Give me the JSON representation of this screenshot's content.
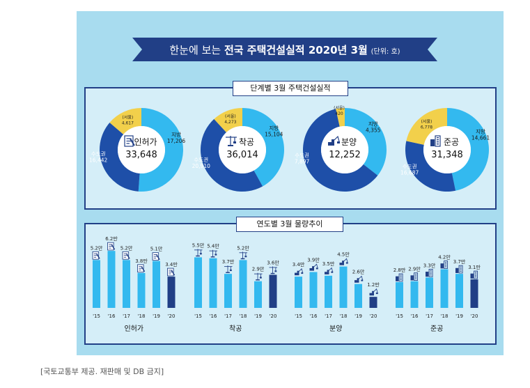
{
  "title": {
    "prefix": "한눈에 보는 ",
    "main": "전국 주택건설실적 2020년 3월",
    "unit": "(단위: 호)"
  },
  "colors": {
    "metro": "#1e4fa8",
    "local": "#33b9ef",
    "seoul": "#f2d04b",
    "navy": "#213f86",
    "bar_past": "#33b9ef",
    "bar_current": "#213f86",
    "background": "#a8dcef"
  },
  "stage_section": {
    "label": "단계별 3월 주택건설실적"
  },
  "trend_section": {
    "label": "연도별 3월 물량추이"
  },
  "caption": "[국토교통부 제공. 재판매 및 DB 금지]",
  "chart_data": [
    {
      "type": "pie",
      "title": "단계별 3월 주택건설실적",
      "charts": [
        {
          "name": "인허가",
          "total": "33,648",
          "icon": "permit-document-icon",
          "slices": [
            {
              "label": "수도권",
              "value": 16442,
              "value_text": "16,442",
              "sub": false
            },
            {
              "label": "지방",
              "value": 17206,
              "value_text": "17,206",
              "sub": false
            },
            {
              "label": "(서울)",
              "value": 4617,
              "value_text": "4,617",
              "sub": true
            }
          ]
        },
        {
          "name": "착공",
          "total": "36,014",
          "icon": "crane-icon",
          "slices": [
            {
              "label": "수도권",
              "value": 20910,
              "value_text": "20,910",
              "sub": false
            },
            {
              "label": "지방",
              "value": 15104,
              "value_text": "15,104",
              "sub": false
            },
            {
              "label": "(서울)",
              "value": 4273,
              "value_text": "4,273",
              "sub": true
            }
          ]
        },
        {
          "name": "분양",
          "total": "12,252",
          "icon": "excavator-icon",
          "slices": [
            {
              "label": "수도권",
              "value": 7897,
              "value_text": "7,897",
              "sub": false
            },
            {
              "label": "지방",
              "value": 4355,
              "value_text": "4,355",
              "sub": false
            },
            {
              "label": "(서울)",
              "value": 420,
              "value_text": "420",
              "sub": true
            }
          ]
        },
        {
          "name": "준공",
          "total": "31,348",
          "icon": "buildings-icon",
          "slices": [
            {
              "label": "수도권",
              "value": 16687,
              "value_text": "16,687",
              "sub": false
            },
            {
              "label": "지방",
              "value": 14661,
              "value_text": "14,661",
              "sub": false
            },
            {
              "label": "(서울)",
              "value": 6778,
              "value_text": "6,778",
              "sub": true
            }
          ]
        }
      ]
    },
    {
      "type": "bar",
      "title": "연도별 3월 물량추이",
      "categories": [
        "'15",
        "'16",
        "'17",
        "'18",
        "'19",
        "'20"
      ],
      "series": [
        {
          "name": "인허가",
          "values": [
            5.2,
            6.2,
            5.2,
            3.8,
            5.1,
            3.4
          ],
          "labels": [
            "5.2만",
            "6.2만",
            "5.2만",
            "3.8만",
            "5.1만",
            "3.4만"
          ]
        },
        {
          "name": "착공",
          "values": [
            5.5,
            5.4,
            3.7,
            5.2,
            2.9,
            3.6
          ],
          "labels": [
            "5.5만",
            "5.4만",
            "3.7만",
            "5.2만",
            "2.9만",
            "3.6만"
          ]
        },
        {
          "name": "분양",
          "values": [
            3.4,
            3.9,
            3.5,
            4.5,
            2.6,
            1.2
          ],
          "labels": [
            "3.4만",
            "3.9만",
            "3.5만",
            "4.5만",
            "2.6만",
            "1.2만"
          ]
        },
        {
          "name": "준공",
          "values": [
            2.8,
            2.9,
            3.3,
            4.2,
            3.7,
            3.1
          ],
          "labels": [
            "2.8만",
            "2.9만",
            "3.3만",
            "4.2만",
            "3.7만",
            "3.1만"
          ]
        }
      ]
    }
  ]
}
